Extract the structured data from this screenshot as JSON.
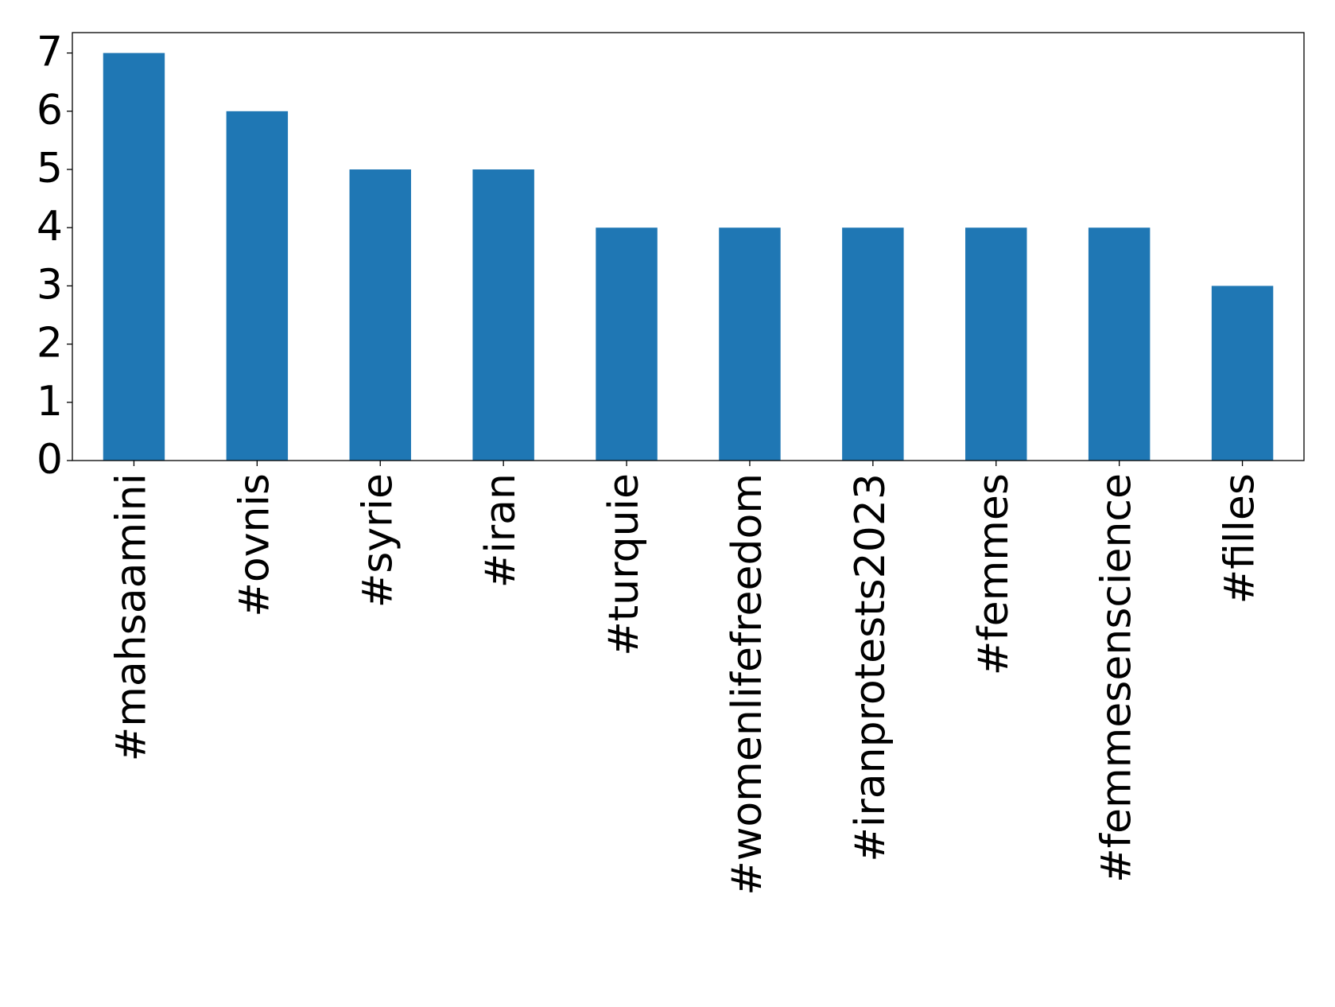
{
  "chart_data": {
    "type": "bar",
    "categories": [
      "#mahsaamini",
      "#ovnis",
      "#syrie",
      "#iran",
      "#turquie",
      "#womenlifefreedom",
      "#iranprotests2023",
      "#femmes",
      "#femmesenscience",
      "#filles"
    ],
    "values": [
      7,
      6,
      5,
      5,
      4,
      4,
      4,
      4,
      4,
      3
    ],
    "color": "#1f77b4",
    "ylim": [
      0,
      7.35
    ],
    "yticks": [
      0,
      1,
      2,
      3,
      4,
      5,
      6,
      7
    ],
    "grid": false
  }
}
